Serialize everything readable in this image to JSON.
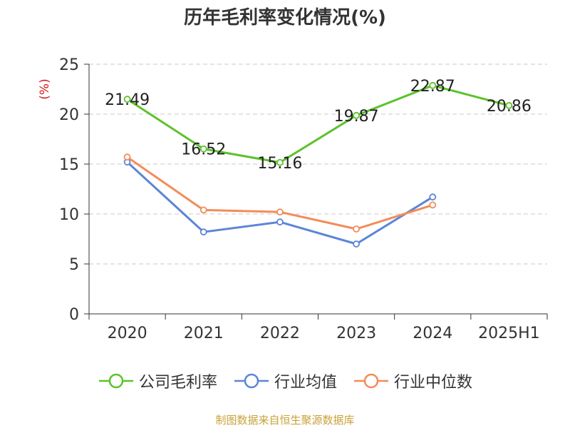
{
  "title": "历年毛利率变化情况(%)",
  "source": "制图数据来自恒生聚源数据库",
  "chart_data": {
    "type": "line",
    "title": "历年毛利率变化情况(%)",
    "ylabel": "(%)",
    "xlabel": "",
    "categories": [
      "2020",
      "2021",
      "2022",
      "2023",
      "2024",
      "2025H1"
    ],
    "ylim": [
      0,
      25
    ],
    "yticks": [
      0,
      5,
      10,
      15,
      20,
      25
    ],
    "grid": true,
    "legend_position": "bottom",
    "series": [
      {
        "name": "公司毛利率",
        "color": "#5cc22b",
        "values": [
          21.49,
          16.52,
          15.16,
          19.87,
          22.87,
          20.86
        ],
        "labels": [
          "21.49",
          "16.52",
          "15.16",
          "19.87",
          "22.87",
          "20.86"
        ]
      },
      {
        "name": "行业均值",
        "color": "#5b85d8",
        "values": [
          15.2,
          8.2,
          9.2,
          7.0,
          11.7,
          null
        ]
      },
      {
        "name": "行业中位数",
        "color": "#f28c5a",
        "values": [
          15.7,
          10.4,
          10.2,
          8.5,
          10.9,
          null
        ]
      }
    ]
  }
}
